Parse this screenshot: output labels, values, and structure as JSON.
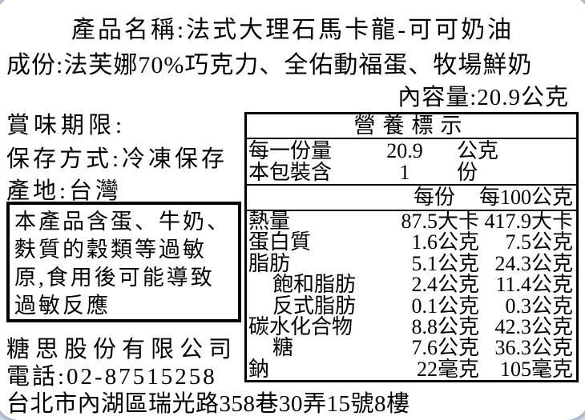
{
  "product": {
    "name_line": "產品名稱:法式大理石馬卡龍-可可奶油",
    "ingredients_line": "成份:法芙娜70%巧克力、全佑動福蛋、牧場鮮奶",
    "net_content_line": "內容量:20.9公克"
  },
  "info": {
    "shelf_life_label": "賞味期限:",
    "storage_line": "保存方式:冷凍保存",
    "origin_line": "產地:台灣"
  },
  "allergen": {
    "lines": [
      "本產品含蛋、牛奶、",
      "麩質的穀類等過敏",
      "原,食用後可能導致",
      "過敏反應"
    ]
  },
  "company": {
    "name": "糖思股份有限公司",
    "phone_line": "電話:02-87515258",
    "address_line": "台北市內湖區瑞光路358巷30弄15號8樓"
  },
  "nutrition": {
    "title": "營養標示",
    "serving_rows": [
      {
        "label": "每一份量",
        "value": "20.9",
        "unit": "公克"
      },
      {
        "label": "本包裝含",
        "value": "1",
        "unit": "份"
      }
    ],
    "col_headers": [
      "每份",
      "每100公克"
    ],
    "rows": [
      {
        "label": "熱量",
        "indent": false,
        "per_serving": "87.5大卡",
        "per_100g": "417.9大卡"
      },
      {
        "label": "蛋白質",
        "indent": false,
        "per_serving": "1.6公克",
        "per_100g": "7.5公克"
      },
      {
        "label": "脂肪",
        "indent": false,
        "per_serving": "5.1公克",
        "per_100g": "24.3公克"
      },
      {
        "label": "飽和脂肪",
        "indent": true,
        "per_serving": "2.4公克",
        "per_100g": "11.4公克"
      },
      {
        "label": "反式脂肪",
        "indent": true,
        "per_serving": "0.1公克",
        "per_100g": "0.3公克"
      },
      {
        "label": "碳水化合物",
        "indent": false,
        "per_serving": "8.8公克",
        "per_100g": "42.3公克"
      },
      {
        "label": "糖",
        "indent": true,
        "per_serving": "7.6公克",
        "per_100g": "36.3公克"
      },
      {
        "label": "鈉",
        "indent": false,
        "per_serving": "22毫克",
        "per_100g": "105毫克"
      }
    ]
  },
  "colors": {
    "text": "#000000",
    "background": "#ffffff",
    "box_border": "#000000",
    "corner_glow": "#8ba0b8"
  }
}
